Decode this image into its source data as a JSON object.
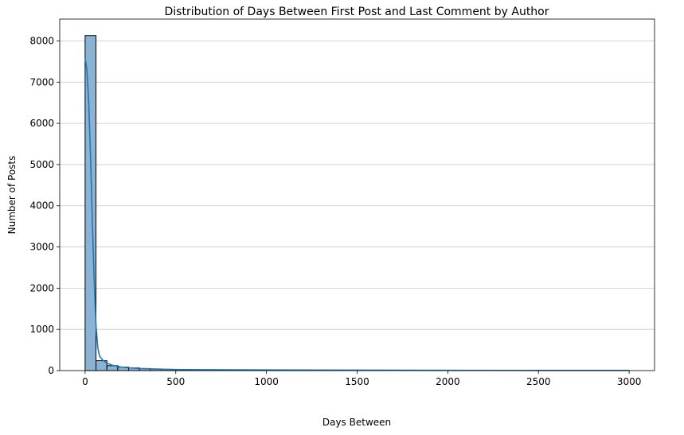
{
  "chart_data": {
    "type": "bar",
    "title": "Distribution of Days Between First Post and Last Comment by Author",
    "xlabel": "Days Between",
    "ylabel": "Number of Posts",
    "xlim": [
      -140,
      3140
    ],
    "ylim": [
      0,
      8530
    ],
    "bin_width": 60,
    "bins_start": 0,
    "x_ticks": [
      0,
      500,
      1000,
      1500,
      2000,
      2500,
      3000
    ],
    "y_ticks": [
      0,
      1000,
      2000,
      3000,
      4000,
      5000,
      6000,
      7000,
      8000
    ],
    "grid": "horizontal",
    "legend": "none",
    "colors": {
      "bar_fill": "#8cb3d4",
      "bar_edge": "#000000",
      "kde_line": "#1f77b4",
      "grid": "#c8c8c8"
    },
    "bars": [
      8130,
      240,
      120,
      85,
      65,
      50,
      40,
      30,
      25,
      22,
      20,
      18,
      15,
      14,
      13,
      12,
      11,
      10,
      9,
      9,
      8,
      8,
      7,
      7,
      6,
      6,
      6,
      5,
      5,
      5,
      5,
      4,
      4,
      4,
      4,
      3,
      3,
      3,
      3,
      3,
      3,
      3,
      2,
      2,
      2,
      2,
      2,
      2,
      2,
      2
    ],
    "kde": {
      "x": [
        0,
        10,
        20,
        30,
        40,
        50,
        60,
        70,
        80,
        100,
        120,
        150,
        200,
        250,
        300,
        400,
        500,
        700,
        1000,
        1500,
        2000,
        2500,
        3000
      ],
      "y": [
        7600,
        7300,
        6500,
        5200,
        3600,
        2200,
        1100,
        550,
        350,
        240,
        180,
        130,
        85,
        65,
        50,
        35,
        25,
        20,
        15,
        10,
        6,
        4,
        3
      ]
    }
  }
}
